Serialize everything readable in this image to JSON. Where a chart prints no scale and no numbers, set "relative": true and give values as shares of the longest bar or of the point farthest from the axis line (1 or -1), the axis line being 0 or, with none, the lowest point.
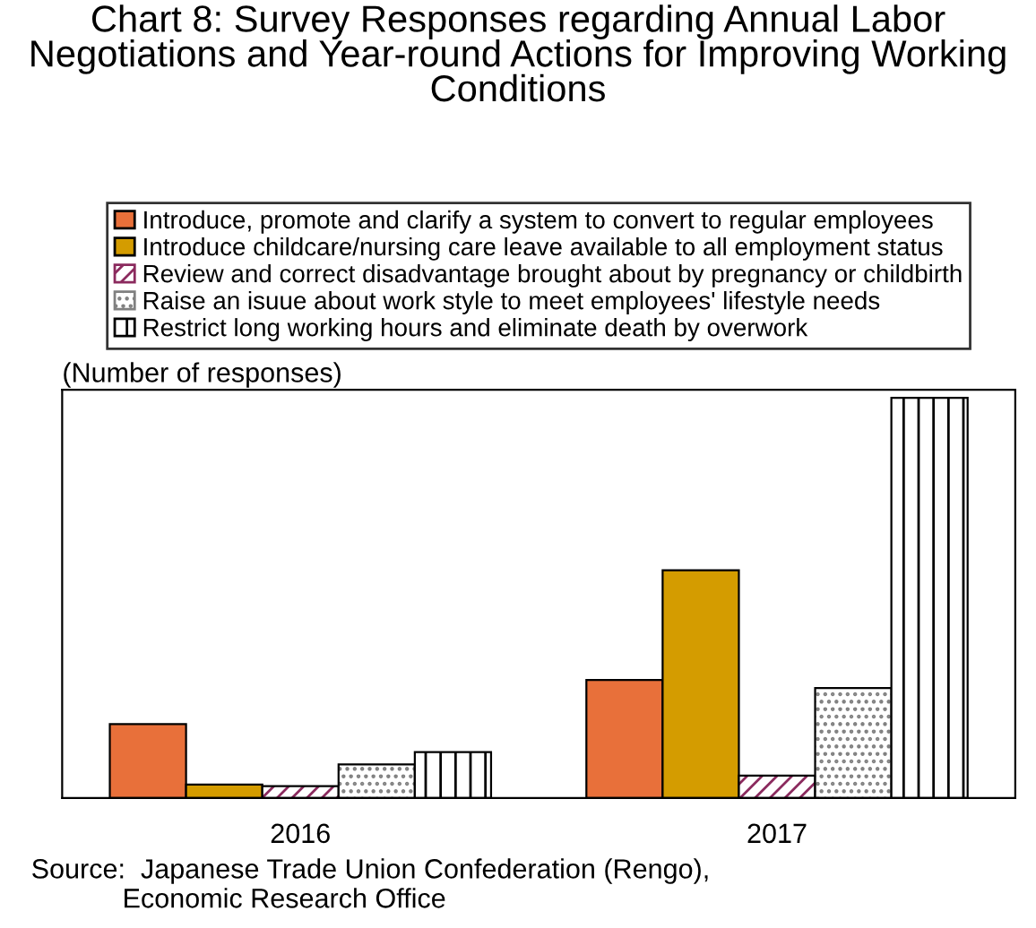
{
  "chart_data": {
    "type": "bar",
    "title": "Chart 8: Survey Responses regarding Annual Labor Negotiations and Year-round Actions for Improving Working Conditions",
    "ylabel": "(Number of responses)",
    "categories": [
      "2016",
      "2017"
    ],
    "relative": true,
    "legend": "top",
    "series": [
      {
        "name": "Introduce, promote and clarify a system to convert to regular employees",
        "color": "#e8703a",
        "values": [
          0.185,
          0.295
        ]
      },
      {
        "name": "Introduce childcare/nursing care leave available to all employment status",
        "color": "#d49c00",
        "values": [
          0.034,
          0.569
        ]
      },
      {
        "name": "Review and correct disadvantage brought about by pregnancy or childbirth",
        "color": "#8b2a5e",
        "values": [
          0.03,
          0.056
        ]
      },
      {
        "name": "Raise an isuue about work style to meet employees' lifestyle needs",
        "color": "#808080",
        "values": [
          0.084,
          0.275
        ]
      },
      {
        "name": "Restrict long working hours and eliminate death by overwork",
        "color": "#000000",
        "values": [
          0.115,
          1
        ]
      }
    ],
    "annotations": [
      "Source:  Japanese Trade Union Confederation (Rengo),\n            Economic Research Office"
    ]
  }
}
